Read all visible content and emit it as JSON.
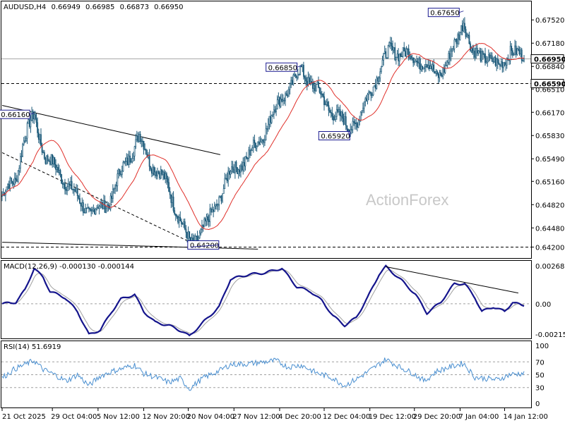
{
  "chart_data": {
    "type": "candlestick",
    "symbol_info": "AUDUSD,H4",
    "ohlc_text": [
      "0.66949",
      "0.66985",
      "0.66873",
      "0.66950"
    ],
    "watermark": "ActionForex",
    "colors": {
      "candle": "#1c5a7a",
      "ma": "#e0302a",
      "macd_main": "#14148c",
      "macd_signal": "#a0a0a0",
      "rsi": "#4a8fd0",
      "grid": "#000000"
    },
    "price_axis": {
      "ylim": [
        0.6405,
        0.6778
      ],
      "ticks": [
        "0.67520",
        "0.67180",
        "0.66840",
        "0.66510",
        "0.66170",
        "0.65830",
        "0.65490",
        "0.65160",
        "0.64820",
        "0.64480",
        "0.64200"
      ],
      "tick_values": [
        0.6752,
        0.6718,
        0.6684,
        0.6651,
        0.6617,
        0.6583,
        0.6549,
        0.6516,
        0.6482,
        0.6448,
        0.642
      ],
      "current_price": {
        "label": "0.66950",
        "value": 0.6695
      },
      "level_line": {
        "label": "0.66590",
        "value": 0.6659
      },
      "bottom_level": {
        "label": "0.64200",
        "value": 0.642
      }
    },
    "annotations": [
      {
        "label": "0.66160",
        "value": 0.6616,
        "bar": 28
      },
      {
        "label": "0.66850",
        "value": 0.6685,
        "bar": 262
      },
      {
        "label": "0.65920",
        "value": 0.6592,
        "bar": 302
      },
      {
        "label": "0.67650",
        "value": 0.6765,
        "bar": 404
      },
      {
        "label": "0.64200",
        "value": 0.642,
        "bar": 165
      }
    ],
    "trend_lines": [
      {
        "from": [
          0,
          0.6627
        ],
        "to": [
          191,
          0.6555
        ],
        "style": "solid"
      },
      {
        "from": [
          0,
          0.6558
        ],
        "to": [
          170,
          0.6423
        ],
        "style": "dashed"
      },
      {
        "from": [
          0,
          0.6427
        ],
        "to": [
          224,
          0.6417
        ],
        "style": "solid"
      }
    ],
    "x_axis": {
      "labels": [
        "21 Oct 2025",
        "29 Oct 04:00",
        "5 Nov 12:00",
        "12 Nov 20:00",
        "20 Nov 04:00",
        "27 Nov 12:00",
        "4 Dec 20:00",
        "12 Dec 04:00",
        "19 Dec 12:00",
        "29 Dec 20:00",
        "7 Jan 04:00",
        "14 Jan 12:00"
      ],
      "label_bars": [
        0,
        44,
        84,
        124,
        163,
        203,
        243,
        282,
        322,
        361,
        401,
        440
      ]
    },
    "anchors": [
      [
        0,
        0.6495
      ],
      [
        12,
        0.652
      ],
      [
        18,
        0.6572
      ],
      [
        28,
        0.6613
      ],
      [
        38,
        0.655
      ],
      [
        50,
        0.653
      ],
      [
        62,
        0.65
      ],
      [
        78,
        0.6468
      ],
      [
        95,
        0.649
      ],
      [
        106,
        0.6538
      ],
      [
        120,
        0.658
      ],
      [
        130,
        0.6545
      ],
      [
        145,
        0.651
      ],
      [
        160,
        0.644
      ],
      [
        165,
        0.6425
      ],
      [
        180,
        0.6455
      ],
      [
        200,
        0.653
      ],
      [
        215,
        0.655
      ],
      [
        230,
        0.659
      ],
      [
        245,
        0.664
      ],
      [
        255,
        0.666
      ],
      [
        262,
        0.668
      ],
      [
        275,
        0.665
      ],
      [
        288,
        0.662
      ],
      [
        302,
        0.6597
      ],
      [
        312,
        0.6605
      ],
      [
        325,
        0.666
      ],
      [
        340,
        0.671
      ],
      [
        355,
        0.67
      ],
      [
        370,
        0.669
      ],
      [
        380,
        0.667
      ],
      [
        390,
        0.669
      ],
      [
        398,
        0.672
      ],
      [
        404,
        0.6755
      ],
      [
        412,
        0.67
      ],
      [
        425,
        0.67
      ],
      [
        435,
        0.668
      ],
      [
        445,
        0.671
      ],
      [
        455,
        0.6695
      ]
    ],
    "macd": {
      "label": "MACD(12,26,9) -0.000130 -0.000144",
      "ylim": [
        -0.00215,
        0.00269
      ],
      "ticks": [
        "0.002687",
        "0.00",
        "-0.002154"
      ],
      "tick_values": [
        0.002687,
        0.0,
        -0.002154
      ],
      "zero_label": "0.00",
      "anchors": [
        [
          0,
          0.0
        ],
        [
          12,
          0.0001
        ],
        [
          20,
          0.0009
        ],
        [
          28,
          0.0023
        ],
        [
          36,
          0.0017
        ],
        [
          42,
          0.0008
        ],
        [
          55,
          0.0004
        ],
        [
          66,
          -0.0005
        ],
        [
          76,
          -0.002
        ],
        [
          86,
          -0.0017
        ],
        [
          96,
          -0.0005
        ],
        [
          104,
          0.0003
        ],
        [
          116,
          0.0006
        ],
        [
          124,
          -0.0005
        ],
        [
          134,
          -0.0012
        ],
        [
          146,
          -0.0014
        ],
        [
          158,
          -0.0018
        ],
        [
          164,
          -0.0021
        ],
        [
          176,
          -0.0012
        ],
        [
          190,
          -0.0002
        ],
        [
          200,
          0.0016
        ],
        [
          216,
          0.0019
        ],
        [
          230,
          0.002
        ],
        [
          245,
          0.0023
        ],
        [
          258,
          0.0011
        ],
        [
          270,
          0.0008
        ],
        [
          280,
          0.0002
        ],
        [
          290,
          -0.0008
        ],
        [
          300,
          -0.0014
        ],
        [
          310,
          -0.0009
        ],
        [
          320,
          0.0004
        ],
        [
          330,
          0.0019
        ],
        [
          336,
          0.0024
        ],
        [
          350,
          0.0015
        ],
        [
          362,
          0.0006
        ],
        [
          372,
          -0.0006
        ],
        [
          384,
          0.0001
        ],
        [
          396,
          0.0013
        ],
        [
          405,
          0.0013
        ],
        [
          414,
          0.0004
        ],
        [
          420,
          -0.0005
        ],
        [
          430,
          -0.0002
        ],
        [
          440,
          -0.0005
        ],
        [
          447,
          0.0001
        ],
        [
          455,
          -0.0001
        ]
      ],
      "trend_line": {
        "from": [
          336,
          0.0024
        ],
        "to": [
          452,
          0.0007
        ]
      }
    },
    "rsi": {
      "label": "RSI(14) 51.6919",
      "ylim": [
        0,
        100
      ],
      "ticks": [
        "100",
        "70",
        "50",
        "30",
        "0"
      ],
      "tick_values": [
        100,
        70,
        50,
        30,
        0
      ],
      "dashed_levels": [
        70,
        50,
        30
      ],
      "anchors": [
        [
          0,
          45
        ],
        [
          10,
          58
        ],
        [
          20,
          66
        ],
        [
          28,
          72
        ],
        [
          36,
          58
        ],
        [
          46,
          50
        ],
        [
          56,
          40
        ],
        [
          66,
          50
        ],
        [
          76,
          33
        ],
        [
          86,
          48
        ],
        [
          96,
          55
        ],
        [
          106,
          60
        ],
        [
          116,
          65
        ],
        [
          124,
          52
        ],
        [
          136,
          45
        ],
        [
          146,
          38
        ],
        [
          156,
          44
        ],
        [
          164,
          28
        ],
        [
          176,
          45
        ],
        [
          190,
          56
        ],
        [
          200,
          66
        ],
        [
          215,
          67
        ],
        [
          230,
          70
        ],
        [
          240,
          72
        ],
        [
          250,
          62
        ],
        [
          262,
          65
        ],
        [
          275,
          53
        ],
        [
          288,
          46
        ],
        [
          300,
          33
        ],
        [
          312,
          45
        ],
        [
          325,
          60
        ],
        [
          336,
          74
        ],
        [
          348,
          62
        ],
        [
          360,
          52
        ],
        [
          370,
          40
        ],
        [
          380,
          55
        ],
        [
          392,
          62
        ],
        [
          404,
          68
        ],
        [
          414,
          46
        ],
        [
          424,
          44
        ],
        [
          434,
          42
        ],
        [
          444,
          50
        ],
        [
          455,
          52
        ]
      ]
    }
  }
}
